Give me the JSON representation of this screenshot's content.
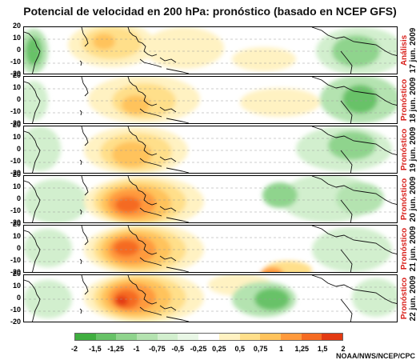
{
  "title": "Potencial de velocidad en 200 hPa: pronóstico (basado en NCEP GFS)",
  "y_ticks": [
    "20",
    "10",
    "0",
    "-10",
    "-20"
  ],
  "panels": [
    {
      "status": "Análisis",
      "date": "17 jun. 2009"
    },
    {
      "status": "Pronóstico",
      "date": "18 jun. 2009"
    },
    {
      "status": "Pronóstico",
      "date": "19 jun. 2009"
    },
    {
      "status": "Pronóstico",
      "date": "20 jun. 2009"
    },
    {
      "status": "Pronóstico",
      "date": "21 jun. 2009"
    },
    {
      "status": "Pronóstico",
      "date": "22 jun. 2009"
    }
  ],
  "colorbar": {
    "labels": [
      "-2",
      "-1,5",
      "-1,25",
      "-1",
      "-0,75",
      "-0,5",
      "-0,25",
      "0,25",
      "0,5",
      "0,75",
      "1",
      "1,25",
      "1,5",
      "2"
    ],
    "colors": [
      "#3fae3f",
      "#67c267",
      "#8fd48d",
      "#b4e3b0",
      "#d2efce",
      "#e9f7e6",
      "#ffffff",
      "#fff2c2",
      "#ffdf8a",
      "#ffc35c",
      "#ff9a3c",
      "#f56b22",
      "#e33a12"
    ]
  },
  "credit": "NOAA/NWS/NCEP/CPC"
}
